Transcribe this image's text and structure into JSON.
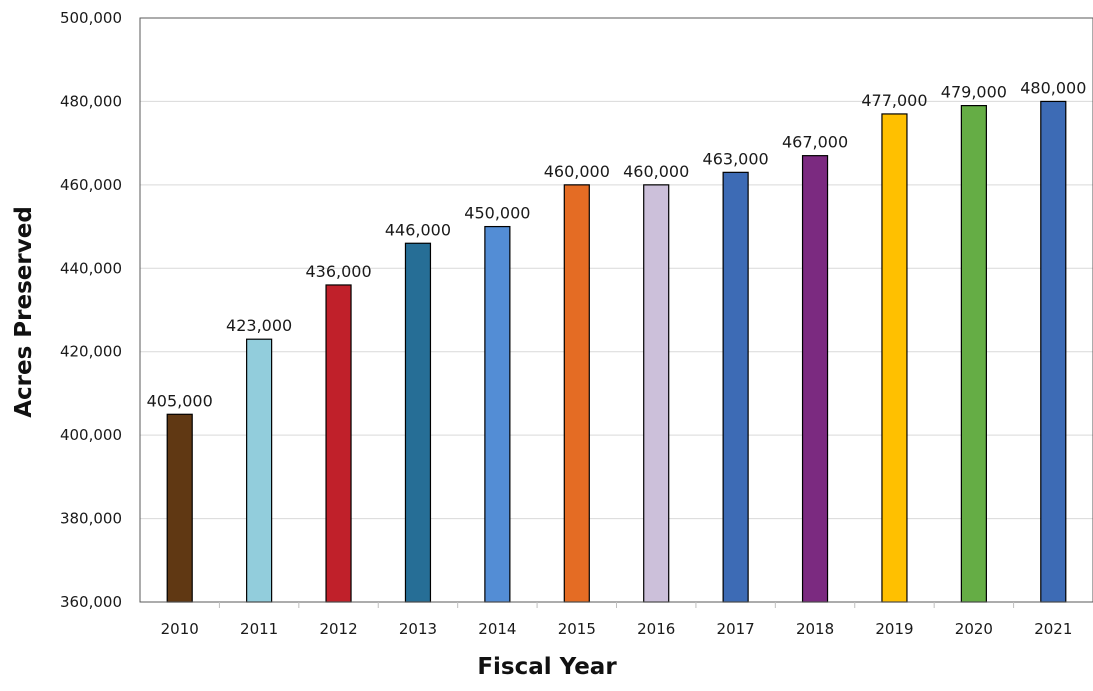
{
  "chart_data": {
    "type": "bar",
    "title": "",
    "xlabel": "Fiscal Year",
    "ylabel": "Acres Preserved",
    "categories": [
      "2010",
      "2011",
      "2012",
      "2013",
      "2014",
      "2015",
      "2016",
      "2017",
      "2018",
      "2019",
      "2020",
      "2021"
    ],
    "values": [
      405000,
      423000,
      436000,
      446000,
      450000,
      460000,
      460000,
      463000,
      467000,
      477000,
      479000,
      480000
    ],
    "value_labels": [
      "405,000",
      "423,000",
      "436,000",
      "446,000",
      "450,000",
      "460,000",
      "460,000",
      "463,000",
      "467,000",
      "477,000",
      "479,000",
      "480,000"
    ],
    "bar_colors": [
      "#603813",
      "#92cddc",
      "#c0202a",
      "#266e96",
      "#538dd5",
      "#e46c24",
      "#ccc0da",
      "#3d6bb5",
      "#7b2a80",
      "#ffc000",
      "#65ad45",
      "#3d6bb5"
    ],
    "ylim": [
      360000,
      500000
    ],
    "yticks": [
      360000,
      380000,
      400000,
      420000,
      440000,
      460000,
      480000,
      500000
    ],
    "ytick_labels": [
      "360,000",
      "380,000",
      "400,000",
      "420,000",
      "440,000",
      "460,000",
      "480,000",
      "500,000"
    ],
    "grid": true,
    "legend": "none"
  }
}
